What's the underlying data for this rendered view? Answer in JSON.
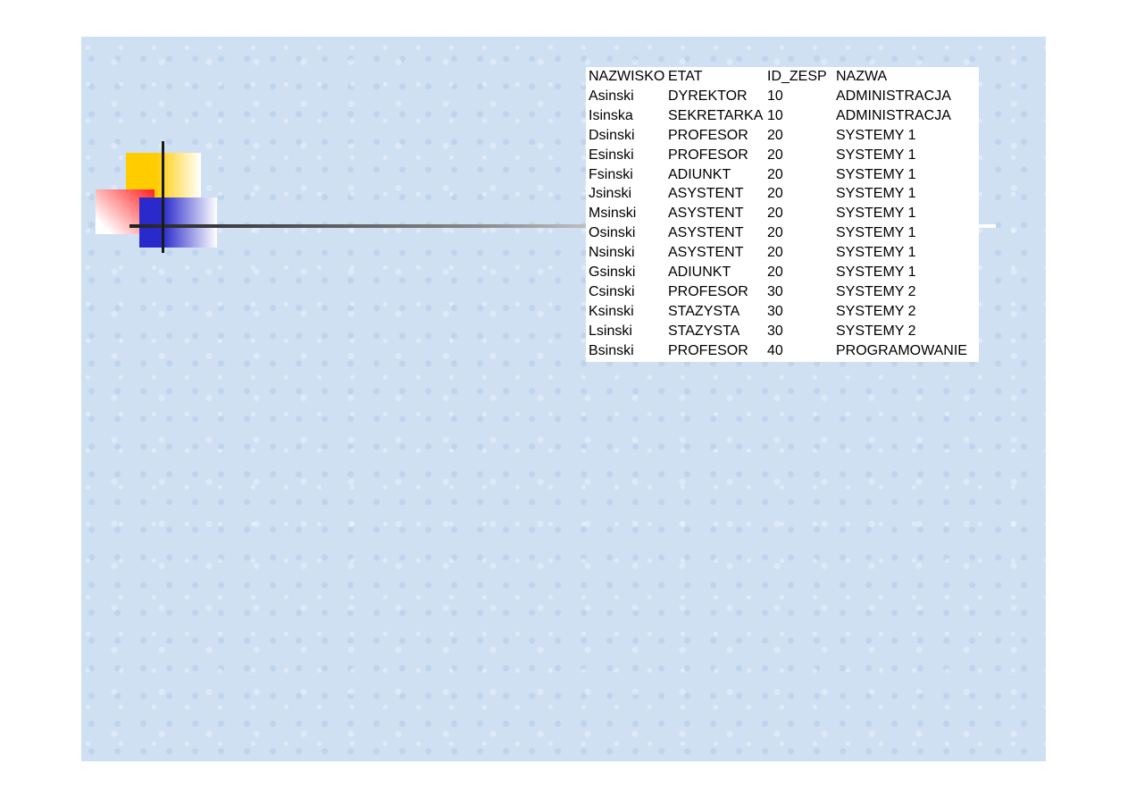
{
  "table": {
    "headers": [
      "NAZWISKO",
      "ETAT",
      "ID_ZESP",
      "NAZWA"
    ],
    "rows": [
      [
        "Asinski",
        "DYREKTOR",
        "10",
        "ADMINISTRACJA"
      ],
      [
        "Isinska",
        "SEKRETARKA",
        "10",
        "ADMINISTRACJA"
      ],
      [
        "Dsinski",
        "PROFESOR",
        "20",
        "SYSTEMY 1"
      ],
      [
        "Esinski",
        "PROFESOR",
        "20",
        "SYSTEMY 1"
      ],
      [
        "Fsinski",
        "ADIUNKT",
        "20",
        "SYSTEMY 1"
      ],
      [
        "Jsinski",
        "ASYSTENT",
        "20",
        "SYSTEMY 1"
      ],
      [
        "Msinski",
        "ASYSTENT",
        "20",
        "SYSTEMY 1"
      ],
      [
        "Osinski",
        "ASYSTENT",
        "20",
        "SYSTEMY 1"
      ],
      [
        "Nsinski",
        "ASYSTENT",
        "20",
        "SYSTEMY 1"
      ],
      [
        "Gsinski",
        "ADIUNKT",
        "20",
        "SYSTEMY 1"
      ],
      [
        "Csinski",
        "PROFESOR",
        "30",
        "SYSTEMY 2"
      ],
      [
        "Ksinski",
        "STAZYSTA",
        "30",
        "SYSTEMY 2"
      ],
      [
        "Lsinski",
        "STAZYSTA",
        "30",
        "SYSTEMY 2"
      ],
      [
        "Bsinski",
        "PROFESOR",
        "40",
        "PROGRAMOWANIE"
      ]
    ]
  },
  "colors": {
    "background": "#cfe0f3",
    "yellow": "#ffcc00",
    "red": "#ff2020",
    "blue": "#2a2acc"
  }
}
